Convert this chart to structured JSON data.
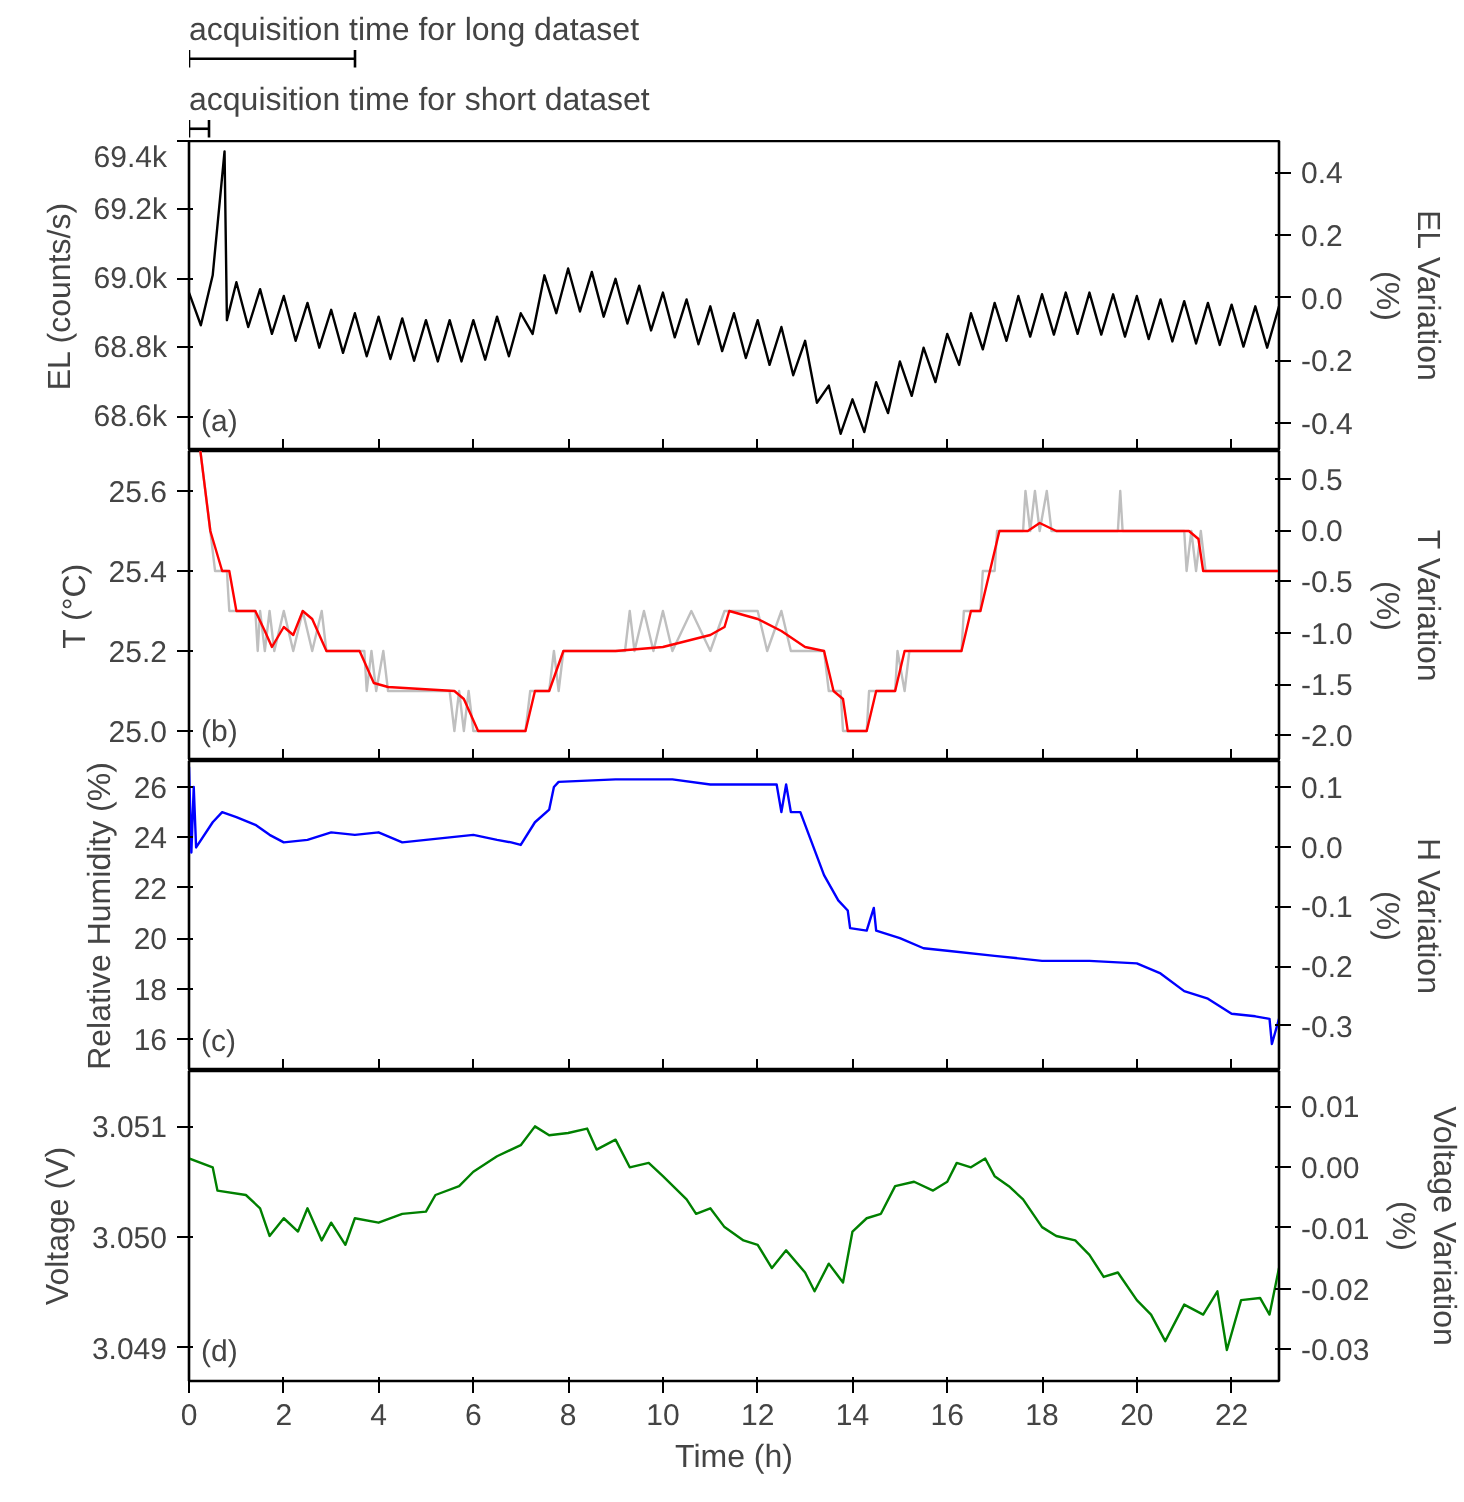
{
  "chart_data": [
    {
      "type": "line",
      "ylabel": "EL (counts/s)",
      "y2label": "EL Variation (%)",
      "tick_labels": "y",
      "annotations": [
        "acquisition time for long dataset",
        "acquisition time for short dataset",
        "(a)"
      ],
      "xlim": [
        0,
        23
      ],
      "xticks": [
        0,
        2,
        4,
        6,
        8,
        10,
        12,
        14,
        16,
        18,
        20,
        22
      ],
      "ylim": [
        68500,
        69400
      ],
      "yticks": [
        {
          "value": 68600,
          "label": "68.6k"
        },
        {
          "value": 68800,
          "label": "68.8k"
        },
        {
          "value": 69000,
          "label": "69.0k"
        },
        {
          "value": 69200,
          "label": "69.2k"
        },
        {
          "value": 69400,
          "label": "69.4k"
        }
      ],
      "y2lim": [
        -0.49,
        0.5
      ],
      "y2ticks": [
        {
          "value": -0.4,
          "label": "-0.4"
        },
        {
          "value": -0.2,
          "label": "-0.2"
        },
        {
          "value": 0,
          "label": "0.0"
        },
        {
          "value": 0.2,
          "label": "0.2"
        },
        {
          "value": 0.4,
          "label": "0.4"
        }
      ],
      "series": [
        {
          "color": "#000000",
          "x": [
            0,
            0.25,
            0.5,
            0.75,
            0.8,
            1.0,
            1.25,
            1.5,
            1.75,
            2.0,
            2.25,
            2.5,
            2.75,
            3.0,
            3.25,
            3.5,
            3.75,
            4.0,
            4.25,
            4.5,
            4.75,
            5.0,
            5.25,
            5.5,
            5.75,
            6.0,
            6.25,
            6.5,
            6.75,
            7.0,
            7.25,
            7.5,
            7.75,
            8.0,
            8.25,
            8.5,
            8.75,
            9.0,
            9.25,
            9.5,
            9.75,
            10.0,
            10.25,
            10.5,
            10.75,
            11.0,
            11.25,
            11.5,
            11.75,
            12.0,
            12.25,
            12.5,
            12.75,
            13.0,
            13.25,
            13.5,
            13.75,
            14.0,
            14.25,
            14.5,
            14.75,
            15.0,
            15.25,
            15.5,
            15.75,
            16.0,
            16.25,
            16.5,
            16.75,
            17.0,
            17.25,
            17.5,
            17.75,
            18.0,
            18.25,
            18.5,
            18.75,
            19.0,
            19.25,
            19.5,
            19.75,
            20.0,
            20.25,
            20.5,
            20.75,
            21.0,
            21.25,
            21.5,
            21.75,
            22.0,
            22.25,
            22.5,
            22.75,
            23.0
          ],
          "values": [
            68960,
            68865,
            69010,
            69370,
            68880,
            68990,
            68860,
            68970,
            68840,
            68950,
            68820,
            68930,
            68800,
            68910,
            68785,
            68900,
            68775,
            68890,
            68767,
            68885,
            68762,
            68880,
            68760,
            68880,
            68760,
            68880,
            68765,
            68890,
            68775,
            68900,
            68840,
            69010,
            68900,
            69030,
            68905,
            69020,
            68890,
            69000,
            68870,
            68980,
            68850,
            68960,
            68830,
            68940,
            68810,
            68920,
            68790,
            68900,
            68770,
            68880,
            68750,
            68860,
            68720,
            68820,
            68640,
            68690,
            68550,
            68650,
            68555,
            68700,
            68610,
            68760,
            68660,
            68800,
            68700,
            68840,
            68750,
            68900,
            68795,
            68930,
            68820,
            68950,
            68832,
            68955,
            68838,
            68960,
            68840,
            68960,
            68838,
            68955,
            68832,
            68950,
            68825,
            68940,
            68818,
            68935,
            68812,
            68930,
            68808,
            68925,
            68803,
            68920,
            68800,
            68920
          ]
        }
      ]
    },
    {
      "type": "line",
      "ylabel": "T (°C)",
      "y2label": "T Variation (%)",
      "annotations": [
        "(b)"
      ],
      "tick_labels": "y",
      "xlim": [
        0,
        23
      ],
      "xticks": [
        0,
        2,
        4,
        6,
        8,
        10,
        12,
        14,
        16,
        18,
        20,
        22
      ],
      "ylim": [
        24.925,
        25.7
      ],
      "yticks": [
        {
          "value": 25.0,
          "label": "25.0"
        },
        {
          "value": 25.2,
          "label": "25.2"
        },
        {
          "value": 25.4,
          "label": "25.4"
        },
        {
          "value": 25.6,
          "label": "25.6"
        }
      ],
      "y2lim": [
        -2.25,
        0.77
      ],
      "y2ticks": [
        {
          "value": -2.0,
          "label": "-2.0"
        },
        {
          "value": -1.5,
          "label": "-1.5"
        },
        {
          "value": -1.0,
          "label": "-1.0"
        },
        {
          "value": -0.5,
          "label": "-0.5"
        },
        {
          "value": 0,
          "label": "0.0"
        },
        {
          "value": 0.5,
          "label": "0.5"
        }
      ],
      "series": [
        {
          "color": "#bfbfbf",
          "x": [
            0.24,
            0.45,
            0.55,
            0.8,
            0.85,
            1.4,
            1.45,
            1.5,
            1.6,
            1.7,
            1.8,
            2.0,
            2.2,
            2.4,
            2.6,
            2.8,
            2.9,
            3.7,
            3.75,
            3.85,
            3.95,
            4.1,
            4.2,
            5.5,
            5.6,
            5.7,
            5.8,
            5.9,
            6.0,
            7.1,
            7.2,
            7.6,
            7.7,
            7.8,
            7.9,
            9.2,
            9.3,
            9.4,
            9.6,
            9.8,
            10.0,
            10.2,
            10.6,
            11.0,
            11.3,
            12.0,
            12.2,
            12.5,
            12.7,
            13.4,
            13.5,
            13.75,
            13.8,
            14.3,
            14.35,
            14.9,
            14.95,
            15.1,
            15.2,
            16.3,
            16.35,
            16.7,
            16.75,
            17.0,
            17.05,
            17.6,
            17.65,
            17.75,
            17.85,
            17.95,
            18.1,
            18.2,
            19.6,
            19.65,
            19.7,
            21.0,
            21.05,
            21.15,
            21.25,
            21.35,
            21.45,
            23
          ],
          "values": [
            25.7,
            25.5,
            25.4,
            25.4,
            25.3,
            25.3,
            25.2,
            25.3,
            25.2,
            25.3,
            25.2,
            25.3,
            25.2,
            25.3,
            25.2,
            25.3,
            25.2,
            25.2,
            25.1,
            25.2,
            25.1,
            25.2,
            25.1,
            25.1,
            25.0,
            25.1,
            25.0,
            25.1,
            25.0,
            25.0,
            25.1,
            25.1,
            25.2,
            25.1,
            25.2,
            25.2,
            25.3,
            25.2,
            25.3,
            25.2,
            25.3,
            25.2,
            25.3,
            25.2,
            25.3,
            25.3,
            25.2,
            25.3,
            25.2,
            25.2,
            25.1,
            25.1,
            25.0,
            25.0,
            25.1,
            25.1,
            25.2,
            25.1,
            25.2,
            25.2,
            25.3,
            25.3,
            25.4,
            25.4,
            25.5,
            25.5,
            25.6,
            25.5,
            25.6,
            25.5,
            25.6,
            25.5,
            25.5,
            25.6,
            25.5,
            25.5,
            25.4,
            25.5,
            25.4,
            25.5,
            25.4,
            25.4
          ]
        },
        {
          "color": "#ff0000",
          "x": [
            0.24,
            0.45,
            0.7,
            0.85,
            1.0,
            1.4,
            1.6,
            1.75,
            2.0,
            2.2,
            2.4,
            2.6,
            2.9,
            3.6,
            3.9,
            4.2,
            5.6,
            5.8,
            6.1,
            7.1,
            7.3,
            7.6,
            7.9,
            9.0,
            10.0,
            11.0,
            11.3,
            11.4,
            12.0,
            12.5,
            13.0,
            13.4,
            13.6,
            13.8,
            13.9,
            14.3,
            14.5,
            14.9,
            15.1,
            16.3,
            16.5,
            16.7,
            16.9,
            17.1,
            17.7,
            17.95,
            18.3,
            21.1,
            21.3,
            21.4,
            23
          ],
          "values": [
            25.7,
            25.5,
            25.4,
            25.4,
            25.3,
            25.3,
            25.25,
            25.21,
            25.26,
            25.24,
            25.3,
            25.28,
            25.2,
            25.2,
            25.12,
            25.11,
            25.1,
            25.08,
            25.0,
            25.0,
            25.1,
            25.1,
            25.2,
            25.2,
            25.21,
            25.24,
            25.26,
            25.3,
            25.28,
            25.25,
            25.21,
            25.2,
            25.1,
            25.08,
            25.0,
            25.0,
            25.1,
            25.1,
            25.2,
            25.2,
            25.3,
            25.3,
            25.4,
            25.5,
            25.5,
            25.52,
            25.5,
            25.5,
            25.48,
            25.4,
            25.4
          ]
        }
      ]
    },
    {
      "type": "line",
      "ylabel": "Relative Humidity (%)",
      "y2label": "H Variation (%)",
      "annotations": [
        "(c)"
      ],
      "tick_labels": "y",
      "xlim": [
        0,
        23
      ],
      "xticks": [
        0,
        2,
        4,
        6,
        8,
        10,
        12,
        14,
        16,
        18,
        20,
        22
      ],
      "ylim": [
        14.73,
        27.03
      ],
      "yticks": [
        16,
        18,
        20,
        22,
        24,
        26
      ],
      "y2lim": [
        -0.376,
        0.144
      ],
      "y2ticks": [
        {
          "value": -0.3,
          "label": "-0.3"
        },
        {
          "value": -0.2,
          "label": "-0.2"
        },
        {
          "value": -0.1,
          "label": "-0.1"
        },
        {
          "value": 0,
          "label": "0.0"
        },
        {
          "value": 0.1,
          "label": "0.1"
        }
      ],
      "series": [
        {
          "color": "#0000ff",
          "x": [
            0,
            0.05,
            0.1,
            0.15,
            0.5,
            0.7,
            1.0,
            1.4,
            1.7,
            2.0,
            2.5,
            3.0,
            3.5,
            4.0,
            4.5,
            5.5,
            6.0,
            6.5,
            6.8,
            7.0,
            7.3,
            7.6,
            7.7,
            7.8,
            9,
            10.2,
            11,
            12.4,
            12.5,
            12.6,
            12.7,
            12.9,
            13.1,
            13.4,
            13.7,
            13.9,
            13.95,
            14.3,
            14.45,
            14.5,
            15,
            15.5,
            16,
            17,
            18,
            19,
            20,
            20.5,
            21,
            21.5,
            22,
            22.5,
            22.8,
            22.85,
            23
          ],
          "values": [
            26.8,
            23.4,
            26.0,
            23.6,
            24.6,
            25.0,
            24.8,
            24.5,
            24.1,
            23.8,
            23.9,
            24.2,
            24.1,
            24.2,
            23.8,
            24.0,
            24.1,
            23.9,
            23.8,
            23.7,
            24.6,
            25.1,
            26.0,
            26.2,
            26.3,
            26.3,
            26.1,
            26.1,
            25.0,
            26.1,
            25.0,
            25.0,
            24.0,
            22.5,
            21.5,
            21.1,
            20.4,
            20.3,
            21.2,
            20.3,
            20.0,
            19.6,
            19.5,
            19.3,
            19.1,
            19.1,
            19.0,
            18.6,
            17.9,
            17.6,
            17.0,
            16.9,
            16.8,
            15.8,
            16.8
          ]
        }
      ]
    },
    {
      "type": "line",
      "ylabel": "Voltage (V)",
      "y2label": "Voltage Variation (%)",
      "xlabel": "Time (h)",
      "annotations": [
        "(d)"
      ],
      "xlim": [
        0,
        23
      ],
      "xticks": [
        0,
        2,
        4,
        6,
        8,
        10,
        12,
        14,
        16,
        18,
        20,
        22
      ],
      "ylim": [
        3.0487,
        3.0515
      ],
      "yticks": [
        3.049,
        {
          "value": 3.05,
          "label": "3.050"
        },
        3.051
      ],
      "y2lim": [
        -0.0352,
        0.0158
      ],
      "y2ticks": [
        -0.03,
        -0.02,
        -0.01,
        {
          "value": 0,
          "label": "0.00"
        },
        0.01
      ],
      "series": [
        {
          "color": "#008000",
          "x": [
            0,
            0.5,
            0.6,
            1.2,
            1.5,
            1.7,
            2.0,
            2.3,
            2.5,
            2.8,
            3.0,
            3.3,
            3.5,
            4.0,
            4.5,
            5.0,
            5.2,
            5.7,
            6.0,
            6.5,
            7.0,
            7.3,
            7.6,
            8.0,
            8.4,
            8.6,
            9.0,
            9.3,
            9.7,
            10.0,
            10.5,
            10.7,
            11.0,
            11.3,
            11.7,
            12.0,
            12.3,
            12.6,
            13.0,
            13.2,
            13.5,
            13.8,
            14.0,
            14.3,
            14.6,
            14.9,
            15.3,
            15.7,
            16.0,
            16.2,
            16.5,
            16.8,
            17.0,
            17.3,
            17.6,
            18.0,
            18.3,
            18.7,
            19.0,
            19.3,
            19.6,
            20.0,
            20.3,
            20.6,
            21.0,
            21.4,
            21.7,
            21.9,
            22.2,
            22.6,
            22.8,
            23.0
          ],
          "values": [
            3.05071,
            3.05063,
            3.05042,
            3.05038,
            3.05026,
            3.05001,
            3.05017,
            3.05005,
            3.05026,
            3.04997,
            3.05013,
            3.04993,
            3.05017,
            3.05013,
            3.05021,
            3.05023,
            3.05038,
            3.05046,
            3.05059,
            3.05073,
            3.05083,
            3.051,
            3.05092,
            3.05094,
            3.05098,
            3.05079,
            3.05088,
            3.05063,
            3.05067,
            3.05055,
            3.05034,
            3.05021,
            3.05026,
            3.05009,
            3.04997,
            3.04993,
            3.04972,
            3.04988,
            3.04968,
            3.04951,
            3.04976,
            3.04959,
            3.05005,
            3.05017,
            3.05021,
            3.05046,
            3.0505,
            3.05042,
            3.0505,
            3.05067,
            3.05063,
            3.05071,
            3.05055,
            3.05046,
            3.05034,
            3.05009,
            3.05001,
            3.04997,
            3.04984,
            3.04964,
            3.04968,
            3.04943,
            3.0493,
            3.04906,
            3.04939,
            3.0493,
            3.04951,
            3.04898,
            3.04943,
            3.04945,
            3.0493,
            3.04972
          ]
        }
      ]
    }
  ]
}
